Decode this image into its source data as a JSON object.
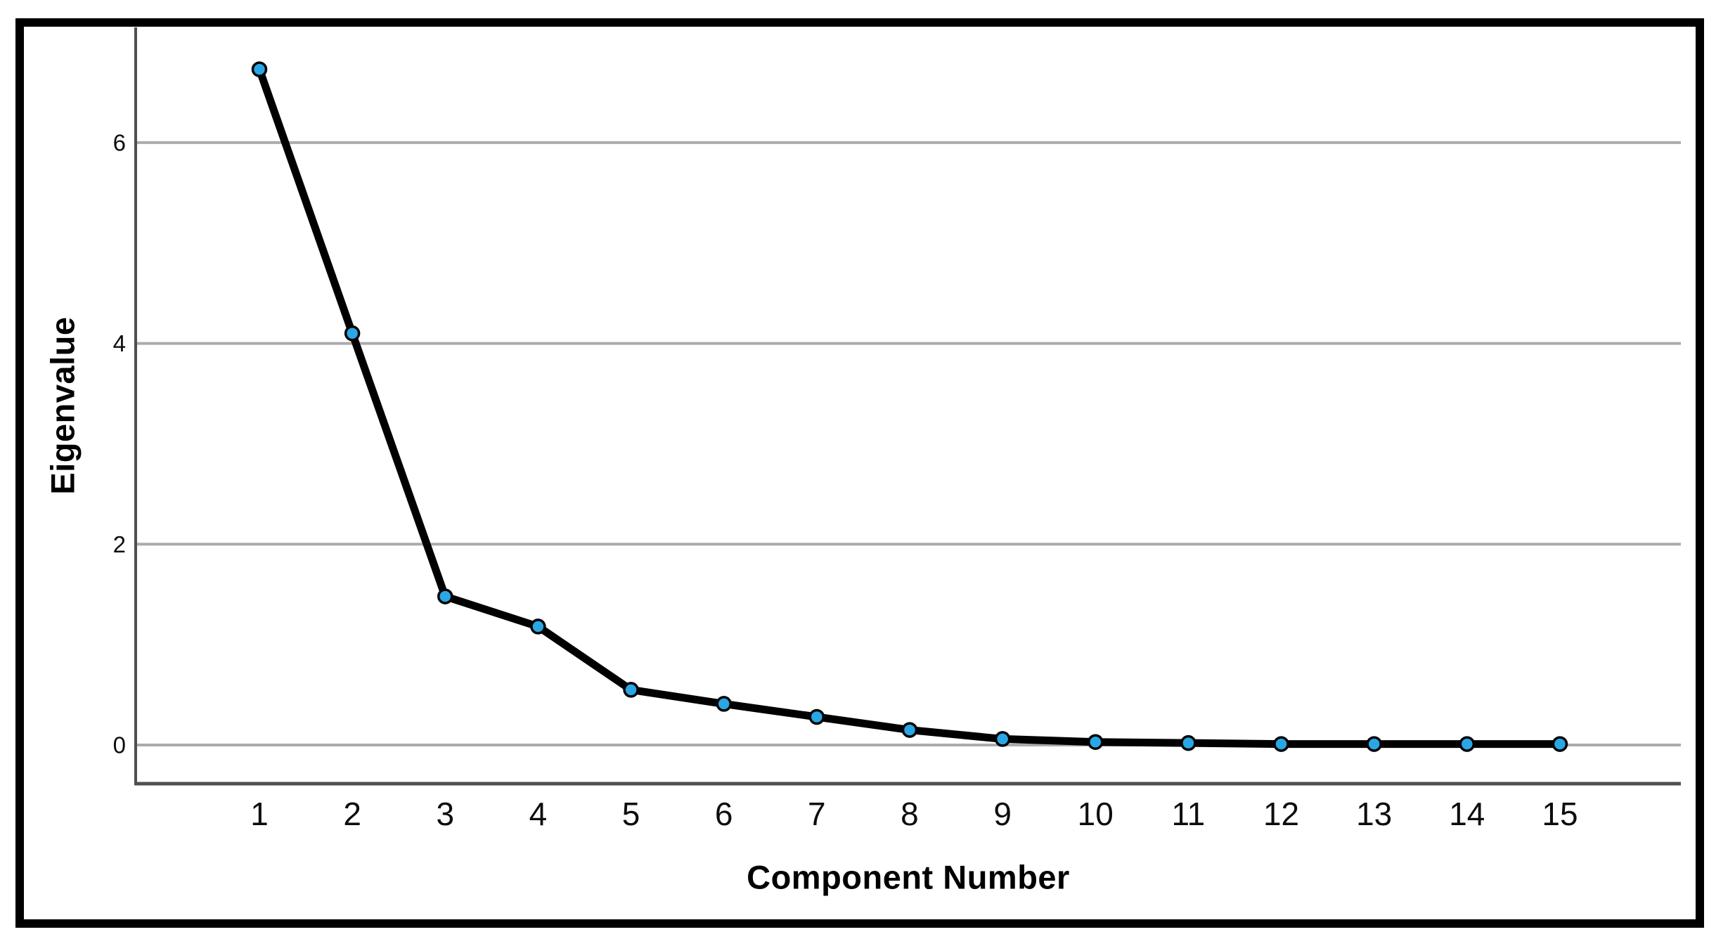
{
  "chart_data": {
    "type": "line",
    "title": "",
    "xlabel": "Component Number",
    "ylabel": "Eigenvalue",
    "x": [
      1,
      2,
      3,
      4,
      5,
      6,
      7,
      8,
      9,
      10,
      11,
      12,
      13,
      14,
      15
    ],
    "values": [
      6.73,
      4.1,
      1.48,
      1.18,
      0.55,
      0.41,
      0.28,
      0.15,
      0.06,
      0.03,
      0.02,
      0.01,
      0.01,
      0.01,
      0.01
    ],
    "x_tick_labels": [
      "1",
      "2",
      "3",
      "4",
      "5",
      "6",
      "7",
      "8",
      "9",
      "10",
      "11",
      "12",
      "13",
      "14",
      "15"
    ],
    "y_tick_labels": [
      "0",
      "2",
      "4",
      "6"
    ],
    "y_tick_values": [
      0,
      2,
      4,
      6
    ],
    "ylim": [
      -0.39,
      7.15
    ],
    "xlim": [
      -0.33,
      16.3
    ],
    "grid": "horizontal",
    "legend": "none",
    "line_color": "#000000",
    "marker_color": "#2BA6E4",
    "marker_outline_color": "#000000"
  },
  "style": {
    "background_color": "#FFFFFF",
    "frame_color": "#000000",
    "axis_line_color": "#4F4F4F",
    "gridline_color": "#ABABAB",
    "tick_label_color": "#0D0D0D",
    "title_color": "#000000"
  }
}
